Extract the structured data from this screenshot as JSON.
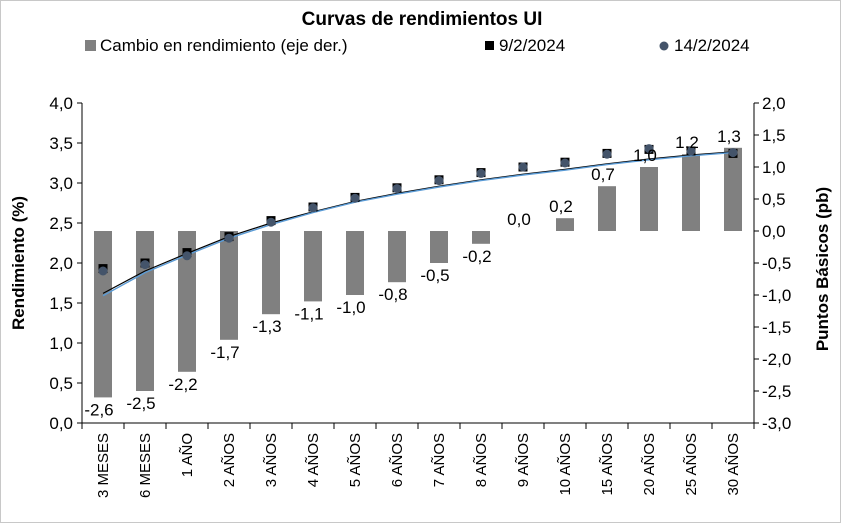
{
  "chart_data": {
    "type": "bar",
    "title": "Curvas de rendimientos UI",
    "categories": [
      "3 MESES",
      "6 MESES",
      "1 AÑO",
      "2 AÑOS",
      "3 AÑOS",
      "4 AÑOS",
      "5 AÑOS",
      "6 AÑOS",
      "7 AÑOS",
      "8 AÑOS",
      "9 AÑOS",
      "10 AÑOS",
      "15 AÑOS",
      "20 AÑOS",
      "25 AÑOS",
      "30 AÑOS"
    ],
    "ylabel": "Rendimiento (%)",
    "y2label": "Puntos Básicos (pb)",
    "ylim": [
      0,
      4
    ],
    "y2lim": [
      -3,
      2
    ],
    "yticks": [
      "0,0",
      "0,5",
      "1,0",
      "1,5",
      "2,0",
      "2,5",
      "3,0",
      "3,5",
      "4,0"
    ],
    "y2ticks": [
      "-3,0",
      "-2,5",
      "-2,0",
      "-1,5",
      "-1,0",
      "-0,5",
      "0,0",
      "0,5",
      "1,0",
      "1,5",
      "2,0"
    ],
    "legend_position": "top",
    "series": [
      {
        "name": "Cambio en rendimiento (eje der.)",
        "kind": "bar",
        "axis": "right",
        "color": "#808080",
        "values": [
          -2.6,
          -2.5,
          -2.2,
          -1.7,
          -1.3,
          -1.1,
          -1.0,
          -0.8,
          -0.5,
          -0.2,
          0.0,
          0.2,
          0.7,
          1.0,
          1.2,
          1.3
        ],
        "labels": [
          "-2,6",
          "-2,5",
          "-2,2",
          "-1,7",
          "-1,3",
          "-1,1",
          "-1,0",
          "-0,8",
          "-0,5",
          "-0,2",
          "0,0",
          "0,2",
          "0,7",
          "1,0",
          "1,2",
          "1,3"
        ]
      },
      {
        "name": "9/2/2024",
        "kind": "marker-square",
        "axis": "left",
        "color": "#000000",
        "values": [
          1.93,
          2.0,
          2.13,
          2.33,
          2.53,
          2.7,
          2.82,
          2.94,
          3.04,
          3.13,
          3.2,
          3.26,
          3.37,
          3.42,
          3.4,
          3.37
        ]
      },
      {
        "name": "14/2/2024",
        "kind": "marker-circle",
        "axis": "left",
        "color": "#44546a",
        "values": [
          1.9,
          1.98,
          2.09,
          2.31,
          2.51,
          2.69,
          2.81,
          2.93,
          3.03,
          3.12,
          3.2,
          3.25,
          3.36,
          3.43,
          3.4,
          3.38
        ]
      }
    ],
    "trendlines": [
      {
        "color": "#000000",
        "values": [
          1.62,
          1.9,
          2.12,
          2.33,
          2.5,
          2.64,
          2.77,
          2.87,
          2.96,
          3.04,
          3.11,
          3.17,
          3.24,
          3.3,
          3.35,
          3.39
        ]
      },
      {
        "color": "#5b9bd5",
        "values": [
          1.59,
          1.88,
          2.1,
          2.31,
          2.48,
          2.63,
          2.76,
          2.86,
          2.95,
          3.03,
          3.1,
          3.16,
          3.23,
          3.29,
          3.34,
          3.38
        ]
      }
    ]
  }
}
